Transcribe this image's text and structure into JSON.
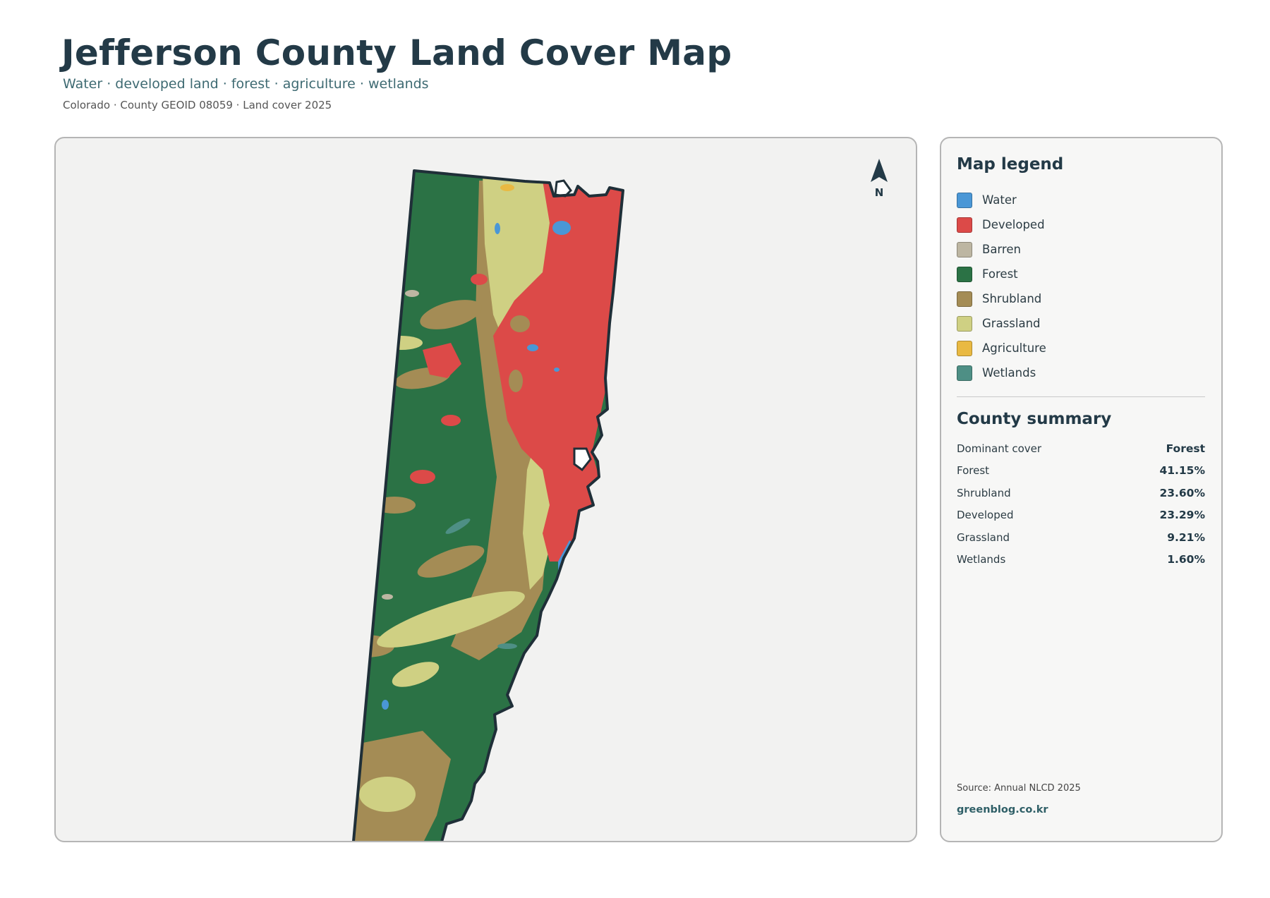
{
  "header": {
    "title": "Jefferson County Land Cover Map",
    "subtitle": "Water · developed land · forest · agriculture · wetlands",
    "meta": "Colorado · County GEOID 08059 · Land cover 2025"
  },
  "map": {
    "north_label": "N",
    "colors": {
      "water": "#4a97d6",
      "developed": "#dc4a48",
      "barren": "#bdb6a2",
      "forest": "#2b7245",
      "shrubland": "#a48c55",
      "grassland": "#cfd083",
      "agriculture": "#e9b942",
      "wetlands": "#4e8f85",
      "outline": "#1f2f38"
    }
  },
  "legend": {
    "heading": "Map legend",
    "items": [
      {
        "label": "Water",
        "color": "#4a97d6"
      },
      {
        "label": "Developed",
        "color": "#dc4a48"
      },
      {
        "label": "Barren",
        "color": "#bdb6a2"
      },
      {
        "label": "Forest",
        "color": "#2b7245"
      },
      {
        "label": "Shrubland",
        "color": "#a48c55"
      },
      {
        "label": "Grassland",
        "color": "#cfd083"
      },
      {
        "label": "Agriculture",
        "color": "#e9b942"
      },
      {
        "label": "Wetlands",
        "color": "#4e8f85"
      }
    ]
  },
  "summary": {
    "heading": "County summary",
    "rows": [
      {
        "label": "Dominant cover",
        "value": "Forest"
      },
      {
        "label": "Forest",
        "value": "41.15%"
      },
      {
        "label": "Shrubland",
        "value": "23.60%"
      },
      {
        "label": "Developed",
        "value": "23.29%"
      },
      {
        "label": "Grassland",
        "value": "9.21%"
      },
      {
        "label": "Wetlands",
        "value": "1.60%"
      }
    ]
  },
  "footer": {
    "source": "Source: Annual NLCD 2025",
    "site": "greenblog.co.kr"
  }
}
